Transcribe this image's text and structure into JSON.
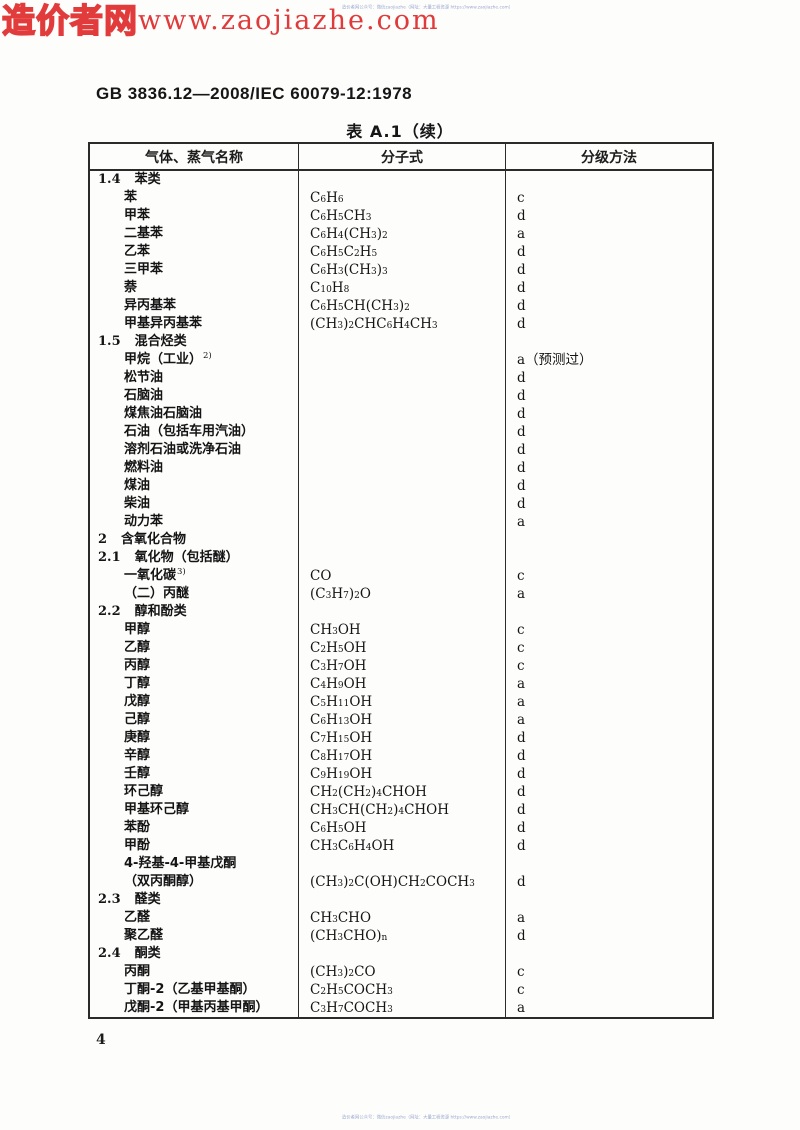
{
  "watermark": {
    "cn": "造价者网",
    "url": "www.zaojiazhe.com"
  },
  "fineprint": {
    "top": "造价者网公众号：微信zaojiazhe（网址：大量工程资源 https://www.zaojiazhe.com）",
    "bottom": "造价者网公众号：微信zaojiazhe（网址：大量工程资源 https://www.zaojiazhe.com）"
  },
  "doc": {
    "standard_no": "GB 3836.12—2008/IEC 60079-12:1978",
    "table_title": "表 A.1（续）",
    "page_number": "4"
  },
  "table": {
    "columns": [
      "气体、蒸气名称",
      "分子式",
      "分级方法"
    ],
    "rows": [
      {
        "type": "section",
        "no": "1.4",
        "name": "苯类"
      },
      {
        "type": "item",
        "name": "苯",
        "formula": "C6H6",
        "grade": "c"
      },
      {
        "type": "item",
        "name": "甲苯",
        "formula": "C6H5CH3",
        "grade": "d"
      },
      {
        "type": "item",
        "name": "二基苯",
        "formula": "C6H4(CH3)2",
        "grade": "a"
      },
      {
        "type": "item",
        "name": "乙苯",
        "formula": "C6H5C2H5",
        "grade": "d"
      },
      {
        "type": "item",
        "name": "三甲苯",
        "formula": "C6H3(CH3)3",
        "grade": "d"
      },
      {
        "type": "item",
        "name": "萘",
        "formula": "C10H8",
        "grade": "d"
      },
      {
        "type": "item",
        "name": "异丙基苯",
        "formula": "C6H5CH(CH3)2",
        "grade": "d"
      },
      {
        "type": "item",
        "name": "甲基异丙基苯",
        "formula": "(CH3)2CHC6H4CH3",
        "grade": "d"
      },
      {
        "type": "section",
        "no": "1.5",
        "name": "混合烃类"
      },
      {
        "type": "item",
        "name": "甲烷（工业）",
        "sup": "2)",
        "grade": "a（预测过）"
      },
      {
        "type": "item",
        "name": "松节油",
        "grade": "d"
      },
      {
        "type": "item",
        "name": "石脑油",
        "grade": "d"
      },
      {
        "type": "item",
        "name": "煤焦油石脑油",
        "grade": "d"
      },
      {
        "type": "item",
        "name": "石油（包括车用汽油）",
        "grade": "d"
      },
      {
        "type": "item",
        "name": "溶剂石油或洗净石油",
        "grade": "d"
      },
      {
        "type": "item",
        "name": "燃料油",
        "grade": "d"
      },
      {
        "type": "item",
        "name": "煤油",
        "grade": "d"
      },
      {
        "type": "item",
        "name": "柴油",
        "grade": "d"
      },
      {
        "type": "item",
        "name": "动力苯",
        "grade": "a"
      },
      {
        "type": "section",
        "no": "2",
        "name": "含氧化合物"
      },
      {
        "type": "section",
        "no": "2.1",
        "name": "氧化物（包括醚）"
      },
      {
        "type": "item",
        "name": "一氧化碳",
        "sup": "3)",
        "formula": "CO",
        "grade": "c"
      },
      {
        "type": "item",
        "name": "（二）丙醚",
        "formula": "(C3H7)2O",
        "grade": "a"
      },
      {
        "type": "section",
        "no": "2.2",
        "name": "醇和酚类"
      },
      {
        "type": "item",
        "name": "甲醇",
        "formula": "CH3OH",
        "grade": "c"
      },
      {
        "type": "item",
        "name": "乙醇",
        "formula": "C2H5OH",
        "grade": "c"
      },
      {
        "type": "item",
        "name": "丙醇",
        "formula": "C3H7OH",
        "grade": "c"
      },
      {
        "type": "item",
        "name": "丁醇",
        "formula": "C4H9OH",
        "grade": "a"
      },
      {
        "type": "item",
        "name": "戊醇",
        "formula": "C5H11OH",
        "grade": "a"
      },
      {
        "type": "item",
        "name": "己醇",
        "formula": "C6H13OH",
        "grade": "a"
      },
      {
        "type": "item",
        "name": "庚醇",
        "formula": "C7H15OH",
        "grade": "d"
      },
      {
        "type": "item",
        "name": "辛醇",
        "formula": "C8H17OH",
        "grade": "d"
      },
      {
        "type": "item",
        "name": "壬醇",
        "formula": "C9H19OH",
        "grade": "d"
      },
      {
        "type": "item",
        "name": "环己醇",
        "formula": "CH2(CH2)4CHOH",
        "grade": "d"
      },
      {
        "type": "item",
        "name": "甲基环己醇",
        "formula": "CH3CH(CH2)4CHOH",
        "grade": "d"
      },
      {
        "type": "item",
        "name": "苯酚",
        "formula": "C6H5OH",
        "grade": "d"
      },
      {
        "type": "item",
        "name": "甲酚",
        "formula": "CH3C6H4OH",
        "grade": "d"
      },
      {
        "type": "item",
        "name": "4-羟基-4-甲基戊酮"
      },
      {
        "type": "item",
        "name": "（双丙酮醇）",
        "formula": "(CH3)2C(OH)CH2COCH3",
        "grade": "d"
      },
      {
        "type": "section",
        "no": "2.3",
        "name": "醛类"
      },
      {
        "type": "item",
        "name": "乙醛",
        "formula": "CH3CHO",
        "grade": "a"
      },
      {
        "type": "item",
        "name": "聚乙醛",
        "formula": "(CH3CHO)n",
        "grade": "d"
      },
      {
        "type": "section",
        "no": "2.4",
        "name": "酮类"
      },
      {
        "type": "item",
        "name": "丙酮",
        "formula": "(CH3)2CO",
        "grade": "c"
      },
      {
        "type": "item",
        "name": "丁酮-2（乙基甲基酮）",
        "formula": "C2H5COCH3",
        "grade": "c"
      },
      {
        "type": "item",
        "name": "戊酮-2（甲基丙基甲酮）",
        "formula": "C3H7COCH3",
        "grade": "a"
      }
    ]
  }
}
